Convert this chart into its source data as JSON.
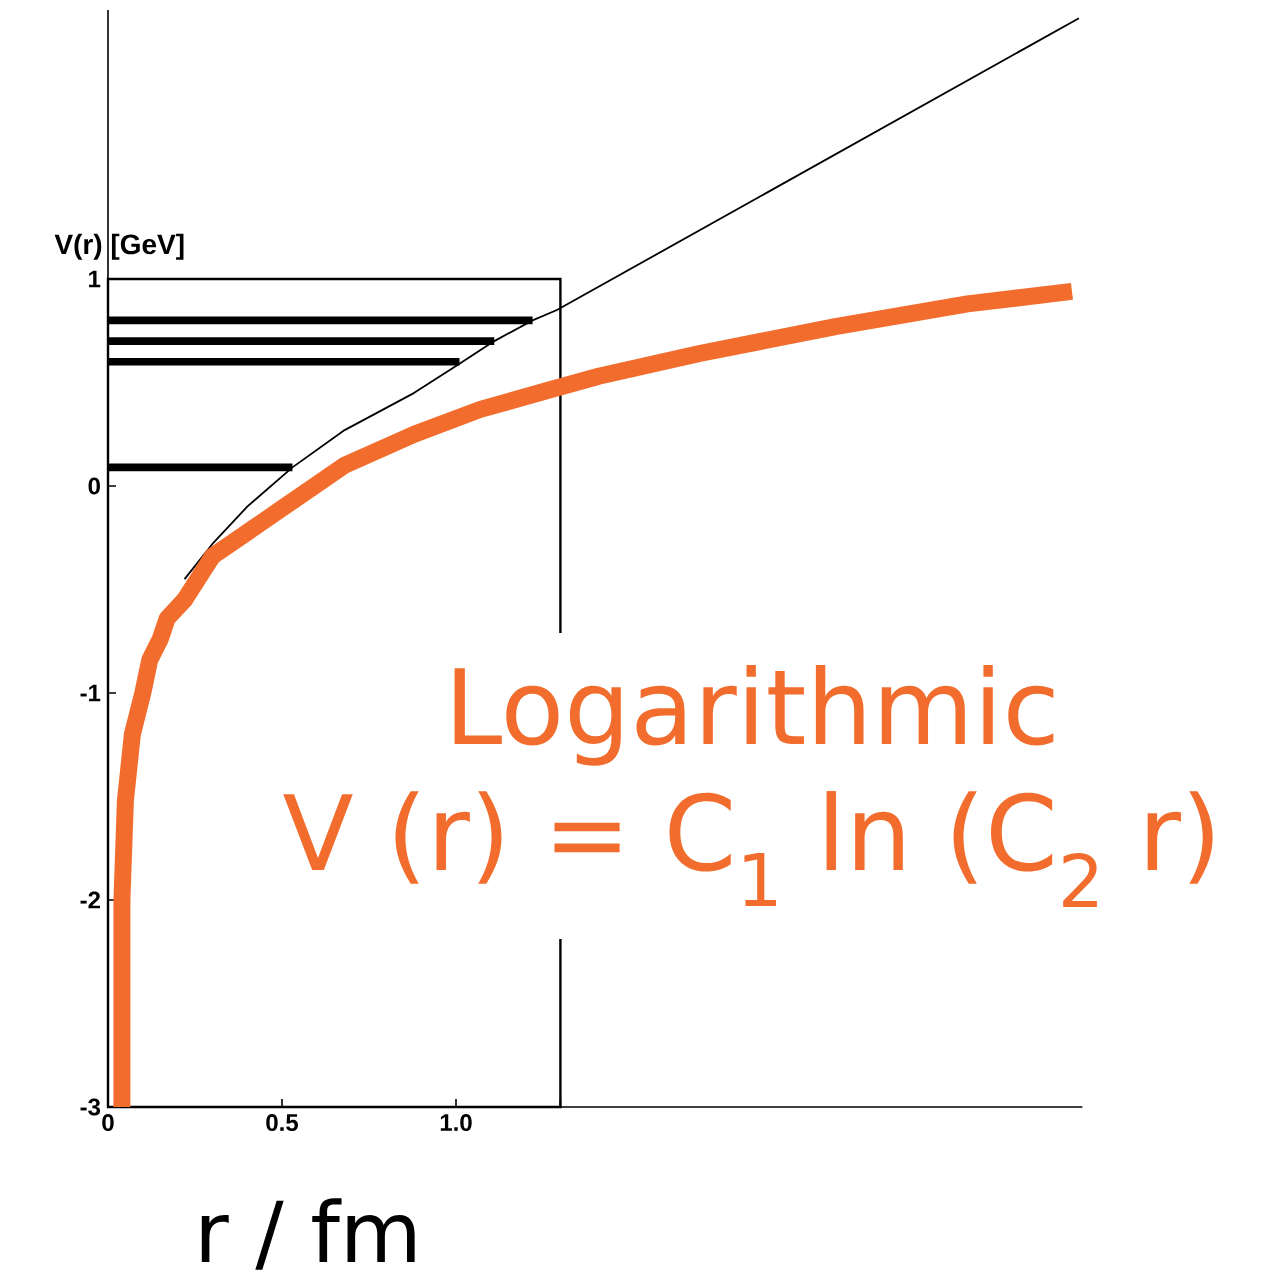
{
  "chart_data": {
    "type": "line",
    "xlabel": "r / fm",
    "ylabel": "V(r) [GeV]",
    "xlim": [
      0,
      2.8
    ],
    "ylim": [
      -3,
      2.3
    ],
    "xticks": [
      0,
      0.5,
      {
        "value": 1.0,
        "label": "1.0"
      },
      {
        "value": 1.3,
        "label": null
      }
    ],
    "yticks": [
      -3,
      -2,
      -1,
      0,
      1
    ],
    "annotations": [
      "V (r) = C$_{1}$ ln (C$_{2}$ r)"
    ],
    "series": [
      {
        "color": "#000000",
        "x": [
          0.22,
          0.3,
          0.4,
          0.53,
          0.68,
          0.88,
          1.01,
          1.11,
          1.22,
          1.29,
          2.79
        ],
        "values": [
          -0.45,
          -0.28,
          -0.1,
          0.09,
          0.27,
          0.45,
          0.59,
          0.7,
          0.8,
          0.85,
          2.26
        ]
      },
      {
        "color": "#000000",
        "x": [
          0,
          1.22
        ],
        "values": [
          0.8,
          0.8
        ]
      },
      {
        "color": "#000000",
        "x": [
          0,
          1.11
        ],
        "values": [
          0.7,
          0.7
        ]
      },
      {
        "color": "#000000",
        "x": [
          0,
          1.01
        ],
        "values": [
          0.6,
          0.6
        ]
      },
      {
        "color": "#000000",
        "x": [
          0,
          0.53
        ],
        "values": [
          0.09,
          0.09
        ]
      },
      {
        "name": "Logarithmic",
        "color": "#f26d2d",
        "x": [
          0.04,
          0.04,
          0.05,
          0.07,
          0.1,
          0.12,
          0.15,
          0.17,
          0.22,
          0.3,
          0.49,
          0.68,
          0.88,
          1.07,
          1.26,
          1.41,
          1.7,
          2.09,
          2.47,
          2.77
        ],
        "values": [
          -3.0,
          -2.0,
          -1.52,
          -1.2,
          -1.0,
          -0.84,
          -0.74,
          -0.64,
          -0.55,
          -0.34,
          -0.12,
          0.1,
          0.25,
          0.37,
          0.46,
          0.53,
          0.64,
          0.77,
          0.88,
          0.94
        ]
      }
    ]
  }
}
